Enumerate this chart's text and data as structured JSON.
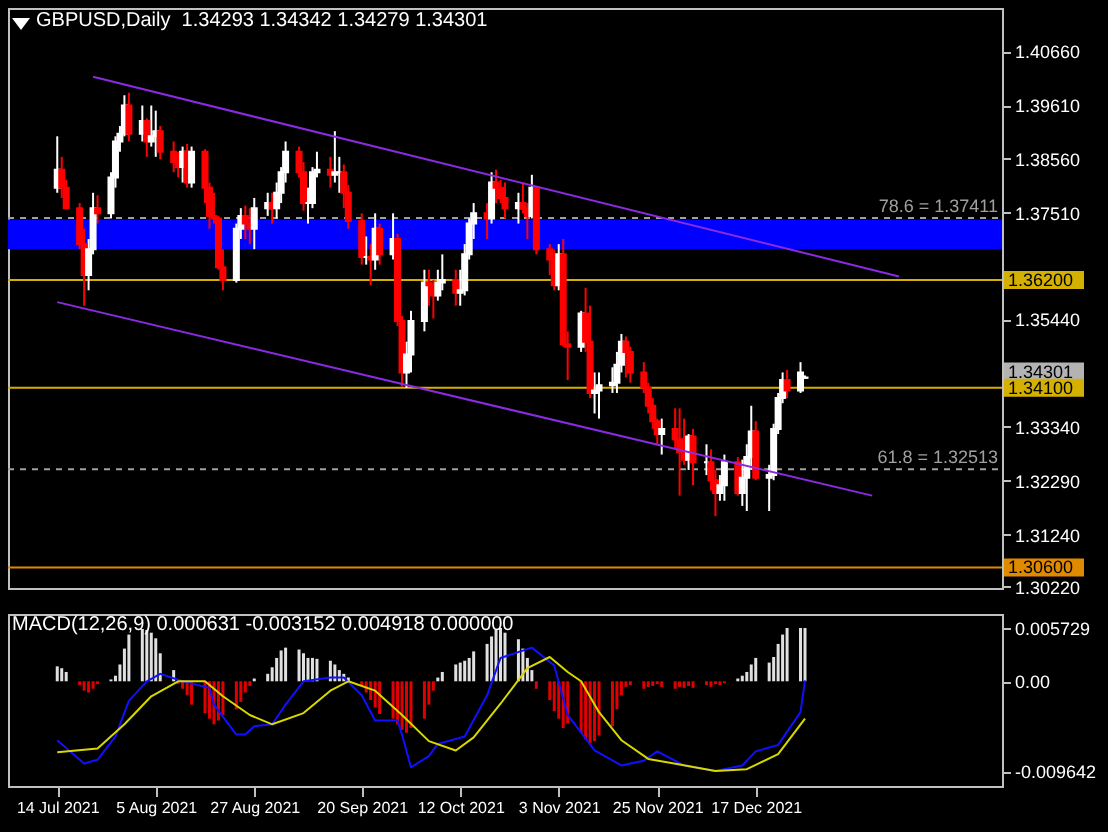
{
  "chart_data": [
    {
      "type": "candlestick",
      "title": "GBPUSD,Daily  1.34293 1.34342 1.34279 1.34301",
      "tick_labels": "y",
      "colors": [
        "#ffffff",
        "#ff0000",
        "#ff0000",
        "#ff0000",
        "#ff0000",
        "#ffffff",
        "#ffffff",
        "#ff0000",
        "#ffffff",
        "#ffffff",
        "#ffffff",
        "#ffffff",
        "#ff0000",
        "#ffffff",
        "#ff0000",
        "#ffffff",
        "#ffffff",
        "#ff0000",
        "#ff0000",
        "#ff0000",
        "#ffffff",
        "#ff0000",
        "#ffffff",
        "#ff0000",
        "#ff0000",
        "#ff0000",
        "#ff0000",
        "#ff0000",
        "#ffffff",
        "#ffffff",
        "#ff0000",
        "#ff0000",
        "#ffffff",
        "#ffffff",
        "#ff0000",
        "#ffffff",
        "#ffffff",
        "#ffffff",
        "#ff0000",
        "#ff0000",
        "#ffffff",
        "#ffffff",
        "#ffffff",
        "#ff0000",
        "#ffffff",
        "#ffffff",
        "#ff0000",
        "#ff0000",
        "#ff0000",
        "#ffffff",
        "#ff0000",
        "#ffffff",
        "#ff0000",
        "#ffffff",
        "#ff0000",
        "#ff0000",
        "#ffffff",
        "#ffffff",
        "#ffffff",
        "#ff0000",
        "#ff0000",
        "#ffffff",
        "#ffffff",
        "#ff0000",
        "#ffffff",
        "#ffffff",
        "#ffffff",
        "#ffffff",
        "#ff0000",
        "#ffffff",
        "#ff0000",
        "#ff0000",
        "#ff0000",
        "#ffffff",
        "#ff0000",
        "#ff0000",
        "#ffffff",
        "#ff0000",
        "#ff0000",
        "#ff0000",
        "#ffffff",
        "#ff0000",
        "#ff0000",
        "#ffffff",
        "#ff0000",
        "#ff0000",
        "#ffffff",
        "#ffffff",
        "#ffffff",
        "#ffffff",
        "#ffffff",
        "#ff0000",
        "#ff0000",
        "#ff0000",
        "#ff0000",
        "#ff0000",
        "#ff0000",
        "#ffffff",
        "#ff0000",
        "#ff0000",
        "#ff0000",
        "#ffffff",
        "#ff0000",
        "#ffffff",
        "#ff0000",
        "#ff0000",
        "#ffffff",
        "#ffffff",
        "#ff0000",
        "#ffffff",
        "#ffffff",
        "#ffffff",
        "#ff0000",
        "#ffffff",
        "#ffffff",
        "#ffffff",
        "#ffffff",
        "#ff0000",
        "#ffffff",
        "#ffffff"
      ],
      "x": [
        "2021-07-14",
        "2021-07-15",
        "2021-07-16",
        "2021-07-19",
        "2021-07-20",
        "2021-07-21",
        "2021-07-22",
        "2021-07-23",
        "2021-07-26",
        "2021-07-27",
        "2021-07-28",
        "2021-07-29",
        "2021-07-30",
        "2021-08-02",
        "2021-08-03",
        "2021-08-04",
        "2021-08-05",
        "2021-08-06",
        "2021-08-09",
        "2021-08-10",
        "2021-08-11",
        "2021-08-12",
        "2021-08-13",
        "2021-08-16",
        "2021-08-17",
        "2021-08-18",
        "2021-08-19",
        "2021-08-20",
        "2021-08-23",
        "2021-08-24",
        "2021-08-25",
        "2021-08-26",
        "2021-08-27",
        "2021-08-30",
        "2021-08-31",
        "2021-09-01",
        "2021-09-02",
        "2021-09-03",
        "2021-09-06",
        "2021-09-07",
        "2021-09-08",
        "2021-09-09",
        "2021-09-10",
        "2021-09-13",
        "2021-09-14",
        "2021-09-15",
        "2021-09-16",
        "2021-09-17",
        "2021-09-20",
        "2021-09-21",
        "2021-09-22",
        "2021-09-23",
        "2021-09-24",
        "2021-09-27",
        "2021-09-28",
        "2021-09-29",
        "2021-09-30",
        "2021-10-01",
        "2021-10-04",
        "2021-10-05",
        "2021-10-06",
        "2021-10-07",
        "2021-10-08",
        "2021-10-11",
        "2021-10-12",
        "2021-10-13",
        "2021-10-14",
        "2021-10-15",
        "2021-10-18",
        "2021-10-19",
        "2021-10-20",
        "2021-10-21",
        "2021-10-22",
        "2021-10-25",
        "2021-10-26",
        "2021-10-27",
        "2021-10-28",
        "2021-10-29",
        "2021-11-01",
        "2021-11-02",
        "2021-11-03",
        "2021-11-04",
        "2021-11-05",
        "2021-11-08",
        "2021-11-09",
        "2021-11-10",
        "2021-11-11",
        "2021-11-12",
        "2021-11-15",
        "2021-11-16",
        "2021-11-17",
        "2021-11-18",
        "2021-11-19",
        "2021-11-22",
        "2021-11-23",
        "2021-11-24",
        "2021-11-25",
        "2021-11-26",
        "2021-11-29",
        "2021-11-30",
        "2021-12-01",
        "2021-12-02",
        "2021-12-03",
        "2021-12-06",
        "2021-12-07",
        "2021-12-08",
        "2021-12-09",
        "2021-12-10",
        "2021-12-13",
        "2021-12-14",
        "2021-12-15",
        "2021-12-16",
        "2021-12-17",
        "2021-12-20",
        "2021-12-21",
        "2021-12-22",
        "2021-12-23",
        "2021-12-24",
        "2021-12-27",
        "2021-12-28"
      ],
      "ohlc": [
        [
          1.38,
          1.39,
          1.379,
          1.3835
        ],
        [
          1.3835,
          1.386,
          1.378,
          1.38
        ],
        [
          1.38,
          1.3815,
          1.376,
          1.376
        ],
        [
          1.376,
          1.377,
          1.368,
          1.369
        ],
        [
          1.369,
          1.372,
          1.357,
          1.363
        ],
        [
          1.363,
          1.37,
          1.36,
          1.368
        ],
        [
          1.368,
          1.379,
          1.367,
          1.376
        ],
        [
          1.376,
          1.3785,
          1.373,
          1.375
        ],
        [
          1.375,
          1.383,
          1.374,
          1.382
        ],
        [
          1.382,
          1.39,
          1.38,
          1.389
        ],
        [
          1.389,
          1.392,
          1.387,
          1.3905
        ],
        [
          1.3905,
          1.398,
          1.39,
          1.396
        ],
        [
          1.396,
          1.3985,
          1.389,
          1.3905
        ],
        [
          1.3905,
          1.396,
          1.389,
          1.393
        ],
        [
          1.393,
          1.3935,
          1.386,
          1.389
        ],
        [
          1.389,
          1.396,
          1.388,
          1.39
        ],
        [
          1.39,
          1.395,
          1.386,
          1.391
        ],
        [
          1.391,
          1.392,
          1.3855,
          1.387
        ],
        [
          1.387,
          1.389,
          1.383,
          1.385
        ],
        [
          1.385,
          1.387,
          1.382,
          1.384
        ],
        [
          1.384,
          1.388,
          1.381,
          1.387
        ],
        [
          1.387,
          1.3885,
          1.38,
          1.381
        ],
        [
          1.381,
          1.388,
          1.38,
          1.387
        ],
        [
          1.387,
          1.3875,
          1.377,
          1.38
        ],
        [
          1.38,
          1.381,
          1.372,
          1.3745
        ],
        [
          1.3745,
          1.379,
          1.373,
          1.374
        ],
        [
          1.374,
          1.3745,
          1.364,
          1.3645
        ],
        [
          1.3645,
          1.368,
          1.36,
          1.362
        ],
        [
          1.362,
          1.373,
          1.3615,
          1.372
        ],
        [
          1.372,
          1.376,
          1.37,
          1.3745
        ],
        [
          1.3745,
          1.3765,
          1.37,
          1.373
        ],
        [
          1.373,
          1.376,
          1.369,
          1.372
        ],
        [
          1.372,
          1.378,
          1.368,
          1.376
        ],
        [
          1.376,
          1.379,
          1.3745,
          1.377
        ],
        [
          1.377,
          1.379,
          1.373,
          1.376
        ],
        [
          1.376,
          1.381,
          1.374,
          1.379
        ],
        [
          1.379,
          1.384,
          1.377,
          1.383
        ],
        [
          1.383,
          1.389,
          1.381,
          1.387
        ],
        [
          1.387,
          1.388,
          1.382,
          1.383
        ],
        [
          1.383,
          1.385,
          1.3755,
          1.377
        ],
        [
          1.377,
          1.38,
          1.373,
          1.377
        ],
        [
          1.377,
          1.384,
          1.376,
          1.383
        ],
        [
          1.383,
          1.387,
          1.382,
          1.3835
        ],
        [
          1.3835,
          1.386,
          1.38,
          1.3825
        ],
        [
          1.3825,
          1.391,
          1.381,
          1.383
        ],
        [
          1.383,
          1.386,
          1.379,
          1.383
        ],
        [
          1.383,
          1.3845,
          1.376,
          1.379
        ],
        [
          1.379,
          1.3805,
          1.372,
          1.3735
        ],
        [
          1.3735,
          1.375,
          1.365,
          1.3665
        ],
        [
          1.3665,
          1.3705,
          1.365,
          1.3665
        ],
        [
          1.3665,
          1.369,
          1.361,
          1.366
        ],
        [
          1.366,
          1.375,
          1.364,
          1.372
        ],
        [
          1.372,
          1.373,
          1.365,
          1.367
        ],
        [
          1.367,
          1.375,
          1.366,
          1.37
        ],
        [
          1.37,
          1.371,
          1.353,
          1.354
        ],
        [
          1.354,
          1.355,
          1.3412,
          1.344
        ],
        [
          1.344,
          1.35,
          1.341,
          1.3475
        ],
        [
          1.3475,
          1.356,
          1.344,
          1.354
        ],
        [
          1.354,
          1.364,
          1.352,
          1.3615
        ],
        [
          1.3615,
          1.364,
          1.357,
          1.361
        ],
        [
          1.361,
          1.362,
          1.3545,
          1.359
        ],
        [
          1.359,
          1.364,
          1.358,
          1.3615
        ],
        [
          1.3615,
          1.367,
          1.36,
          1.362
        ],
        [
          1.362,
          1.364,
          1.357,
          1.3595
        ],
        [
          1.3595,
          1.364,
          1.357,
          1.36
        ],
        [
          1.36,
          1.369,
          1.359,
          1.367
        ],
        [
          1.367,
          1.374,
          1.366,
          1.373
        ],
        [
          1.373,
          1.377,
          1.37,
          1.375
        ],
        [
          1.375,
          1.377,
          1.37,
          1.374
        ],
        [
          1.374,
          1.383,
          1.373,
          1.381
        ],
        [
          1.381,
          1.3835,
          1.377,
          1.38
        ],
        [
          1.38,
          1.3815,
          1.377,
          1.378
        ],
        [
          1.378,
          1.381,
          1.374,
          1.376
        ],
        [
          1.376,
          1.379,
          1.373,
          1.377
        ],
        [
          1.377,
          1.381,
          1.375,
          1.376
        ],
        [
          1.376,
          1.377,
          1.37,
          1.3745
        ],
        [
          1.3745,
          1.3825,
          1.374,
          1.38
        ],
        [
          1.38,
          1.38,
          1.367,
          1.368
        ],
        [
          1.368,
          1.369,
          1.363,
          1.366
        ],
        [
          1.366,
          1.368,
          1.36,
          1.361
        ],
        [
          1.361,
          1.369,
          1.36,
          1.367
        ],
        [
          1.367,
          1.37,
          1.349,
          1.3495
        ],
        [
          1.3495,
          1.352,
          1.3425,
          1.349
        ],
        [
          1.349,
          1.356,
          1.348,
          1.3555
        ],
        [
          1.3555,
          1.3605,
          1.348,
          1.35
        ],
        [
          1.35,
          1.357,
          1.339,
          1.34
        ],
        [
          1.34,
          1.344,
          1.336,
          1.3405
        ],
        [
          1.3405,
          1.344,
          1.335,
          1.3415
        ],
        [
          1.3415,
          1.345,
          1.34,
          1.342
        ],
        [
          1.342,
          1.348,
          1.34,
          1.3455
        ],
        [
          1.3455,
          1.3515,
          1.344,
          1.35
        ],
        [
          1.35,
          1.351,
          1.343,
          1.348
        ],
        [
          1.348,
          1.349,
          1.342,
          1.344
        ],
        [
          1.344,
          1.346,
          1.34,
          1.341
        ],
        [
          1.341,
          1.342,
          1.336,
          1.3375
        ],
        [
          1.3375,
          1.339,
          1.333,
          1.3345
        ],
        [
          1.3345,
          1.335,
          1.33,
          1.332
        ],
        [
          1.332,
          1.335,
          1.328,
          1.333
        ],
        [
          1.333,
          1.337,
          1.329,
          1.331
        ],
        [
          1.331,
          1.337,
          1.32,
          1.3285
        ],
        [
          1.3285,
          1.335,
          1.326,
          1.327
        ],
        [
          1.327,
          1.332,
          1.325,
          1.3315
        ],
        [
          1.3315,
          1.333,
          1.322,
          1.3265
        ],
        [
          1.3265,
          1.33,
          1.324,
          1.3265
        ],
        [
          1.3265,
          1.329,
          1.321,
          1.323
        ],
        [
          1.323,
          1.325,
          1.316,
          1.3205
        ],
        [
          1.3205,
          1.324,
          1.319,
          1.322
        ],
        [
          1.322,
          1.328,
          1.319,
          1.3265
        ],
        [
          1.3265,
          1.3275,
          1.32,
          1.3205
        ],
        [
          1.3205,
          1.327,
          1.318,
          1.3235
        ],
        [
          1.3235,
          1.33,
          1.317,
          1.3275
        ],
        [
          1.3275,
          1.3375,
          1.325,
          1.3325
        ],
        [
          1.3325,
          1.3345,
          1.323,
          1.3235
        ],
        [
          1.3235,
          1.326,
          1.317,
          1.324
        ],
        [
          1.324,
          1.334,
          1.323,
          1.333
        ],
        [
          1.333,
          1.34,
          1.332,
          1.339
        ],
        [
          1.339,
          1.344,
          1.338,
          1.3425
        ],
        [
          1.3425,
          1.3445,
          1.339,
          1.3405
        ],
        [
          1.3405,
          1.346,
          1.34,
          1.344
        ],
        [
          1.34293,
          1.34342,
          1.34279,
          1.34301
        ]
      ],
      "series": [
        {
          "type": "line",
          "color": "#8a2be2",
          "x": [
            "2021-07-22",
            "2022-01-18"
          ],
          "values": [
            1.4016,
            1.3627
          ]
        },
        {
          "type": "line",
          "color": "#8a2be2",
          "x": [
            "2021-07-14",
            "2022-01-12"
          ],
          "values": [
            1.3577,
            1.32
          ]
        }
      ],
      "xlim": [
        "2021-07-03",
        "2022-02-10"
      ],
      "ylim": [
        1.302,
        1.415
      ],
      "yticks": [
        {
          "value": 1.4066,
          "label": "1.40660"
        },
        {
          "value": 1.3961,
          "label": "1.39610"
        },
        {
          "value": 1.3856,
          "label": "1.38560"
        },
        {
          "value": 1.3751,
          "label": "1.37510"
        },
        {
          "value": 1.3544,
          "label": "1.35440"
        },
        {
          "value": 1.3334,
          "label": "1.33340"
        },
        {
          "value": 1.3229,
          "label": "1.32290"
        },
        {
          "value": 1.3124,
          "label": "1.31240"
        },
        {
          "value": 1.3022,
          "label": "1.30220"
        }
      ],
      "bands": [
        {
          "axis": "y",
          "from": 1.368,
          "to": 1.3738,
          "color": "#0000ff"
        }
      ],
      "ref_lines": [
        {
          "axis": "y",
          "value": 1.37411,
          "label": "78.6 = 1.37411",
          "color": "#a0a0a0",
          "line_style": "dashed"
        },
        {
          "axis": "y",
          "value": 1.362,
          "label": "1.36200",
          "color": "#d4b000",
          "line_style": "solid"
        },
        {
          "axis": "y",
          "value": 1.341,
          "label": "1.34100",
          "color": "#d4b000",
          "line_style": "solid"
        },
        {
          "axis": "y",
          "value": 1.32513,
          "label": "61.8 = 1.32513",
          "color": "#a0a0a0",
          "line_style": "dashed"
        },
        {
          "axis": "y",
          "value": 1.306,
          "label": "1.30600",
          "color": "#e08a00",
          "line_style": "solid"
        }
      ],
      "annotations": [
        "1.34301"
      ],
      "grid": false
    },
    {
      "type": "bar",
      "title": "MACD(12,26,9) 0.000631 -0.003152 0.004918 0.000000",
      "x": [
        "2021-07-14",
        "2021-07-15",
        "2021-07-16",
        "2021-07-19",
        "2021-07-20",
        "2021-07-21",
        "2021-07-22",
        "2021-07-23",
        "2021-07-26",
        "2021-07-27",
        "2021-07-28",
        "2021-07-29",
        "2021-07-30",
        "2021-08-02",
        "2021-08-03",
        "2021-08-04",
        "2021-08-05",
        "2021-08-06",
        "2021-08-09",
        "2021-08-10",
        "2021-08-11",
        "2021-08-12",
        "2021-08-13",
        "2021-08-16",
        "2021-08-17",
        "2021-08-18",
        "2021-08-19",
        "2021-08-20",
        "2021-08-23",
        "2021-08-24",
        "2021-08-25",
        "2021-08-26",
        "2021-08-27",
        "2021-08-30",
        "2021-08-31",
        "2021-09-01",
        "2021-09-02",
        "2021-09-03",
        "2021-09-06",
        "2021-09-07",
        "2021-09-08",
        "2021-09-09",
        "2021-09-10",
        "2021-09-13",
        "2021-09-14",
        "2021-09-15",
        "2021-09-16",
        "2021-09-17",
        "2021-09-20",
        "2021-09-21",
        "2021-09-22",
        "2021-09-23",
        "2021-09-24",
        "2021-09-27",
        "2021-09-28",
        "2021-09-29",
        "2021-09-30",
        "2021-10-01",
        "2021-10-04",
        "2021-10-05",
        "2021-10-06",
        "2021-10-07",
        "2021-10-08",
        "2021-10-11",
        "2021-10-12",
        "2021-10-13",
        "2021-10-14",
        "2021-10-15",
        "2021-10-18",
        "2021-10-19",
        "2021-10-20",
        "2021-10-21",
        "2021-10-22",
        "2021-10-25",
        "2021-10-26",
        "2021-10-27",
        "2021-10-28",
        "2021-10-29",
        "2021-11-01",
        "2021-11-02",
        "2021-11-03",
        "2021-11-04",
        "2021-11-05",
        "2021-11-08",
        "2021-11-09",
        "2021-11-10",
        "2021-11-11",
        "2021-11-12",
        "2021-11-15",
        "2021-11-16",
        "2021-11-17",
        "2021-11-18",
        "2021-11-19",
        "2021-11-22",
        "2021-11-23",
        "2021-11-24",
        "2021-11-25",
        "2021-11-26",
        "2021-11-29",
        "2021-11-30",
        "2021-12-01",
        "2021-12-02",
        "2021-12-03",
        "2021-12-06",
        "2021-12-07",
        "2021-12-08",
        "2021-12-09",
        "2021-12-10",
        "2021-12-13",
        "2021-12-14",
        "2021-12-15",
        "2021-12-16",
        "2021-12-17",
        "2021-12-20",
        "2021-12-21",
        "2021-12-22",
        "2021-12-23",
        "2021-12-24",
        "2021-12-27",
        "2021-12-28"
      ],
      "series": [
        {
          "values": [
            0.0016,
            0.0014,
            0.001,
            -0.0004,
            -0.001,
            -0.0012,
            -0.0008,
            -0.0003,
            0.0002,
            0.0006,
            0.0018,
            0.0035,
            0.005,
            0.0056,
            0.0055,
            0.0052,
            0.0046,
            0.003,
            0.0012,
            -0.0003,
            -0.0008,
            -0.0015,
            -0.0025,
            -0.0034,
            -0.004,
            -0.0046,
            -0.0042,
            -0.0036,
            -0.003,
            -0.0022,
            -0.0012,
            -0.0005,
            0.0003,
            0.0008,
            0.0015,
            0.0025,
            0.0033,
            0.0036,
            0.0034,
            0.003,
            0.0025,
            0.0025,
            0.0024,
            0.0022,
            0.0018,
            0.0012,
            0.0008,
            0.0004,
            -0.0005,
            -0.0012,
            -0.002,
            -0.0028,
            -0.0035,
            -0.004,
            -0.0046,
            -0.0052,
            -0.0055,
            -0.005,
            -0.004,
            -0.0025,
            -0.001,
            0.0004,
            0.001,
            0.0018,
            0.002,
            0.0022,
            0.0025,
            0.0032,
            0.004,
            0.0048,
            0.0055,
            0.0057,
            0.0052,
            0.0045,
            0.0035,
            0.0025,
            0.0012,
            -0.0008,
            -0.002,
            -0.0032,
            -0.004,
            -0.005,
            -0.0045,
            -0.0055,
            -0.0062,
            -0.0066,
            -0.0064,
            -0.0058,
            -0.0048,
            -0.003,
            -0.0015,
            -0.0006,
            -0.0004,
            -0.0008,
            -0.0006,
            -0.0005,
            -0.0003,
            -0.0006,
            -0.0008,
            -0.0006,
            -0.0007,
            -0.0005,
            -0.0007,
            -0.0004,
            -0.0006,
            -0.0003,
            -0.0004,
            -0.0002,
            0.0003,
            0.0006,
            0.001,
            0.0018,
            0.0025,
            0.002,
            0.0026,
            0.004,
            0.005,
            0.0057,
            0.0057,
            0.0057
          ],
          "colors": [
            "#e0e0e0",
            "#e0e0e0",
            "#e0e0e0",
            "#e00000",
            "#e00000",
            "#e00000",
            "#e00000",
            "#e00000",
            "#e0e0e0",
            "#e0e0e0",
            "#e0e0e0",
            "#e0e0e0",
            "#e0e0e0",
            "#e0e0e0",
            "#e0e0e0",
            "#e0e0e0",
            "#e0e0e0",
            "#e0e0e0",
            "#e0e0e0",
            "#e00000",
            "#e00000",
            "#e00000",
            "#e00000",
            "#e00000",
            "#e00000",
            "#e00000",
            "#e00000",
            "#e00000",
            "#e00000",
            "#e00000",
            "#e00000",
            "#e00000",
            "#e0e0e0",
            "#e0e0e0",
            "#e0e0e0",
            "#e0e0e0",
            "#e0e0e0",
            "#e0e0e0",
            "#e0e0e0",
            "#e0e0e0",
            "#e0e0e0",
            "#e0e0e0",
            "#e0e0e0",
            "#e0e0e0",
            "#e0e0e0",
            "#e0e0e0",
            "#e0e0e0",
            "#e0e0e0",
            "#e00000",
            "#e00000",
            "#e00000",
            "#e00000",
            "#e00000",
            "#e00000",
            "#e00000",
            "#e00000",
            "#e00000",
            "#e00000",
            "#e00000",
            "#e00000",
            "#e00000",
            "#e0e0e0",
            "#e0e0e0",
            "#e0e0e0",
            "#e0e0e0",
            "#e0e0e0",
            "#e0e0e0",
            "#e0e0e0",
            "#e0e0e0",
            "#e0e0e0",
            "#e0e0e0",
            "#e0e0e0",
            "#e0e0e0",
            "#e0e0e0",
            "#e0e0e0",
            "#e0e0e0",
            "#e0e0e0",
            "#e00000",
            "#e00000",
            "#e00000",
            "#e00000",
            "#e00000",
            "#e00000",
            "#e00000",
            "#e00000",
            "#e00000",
            "#e00000",
            "#e00000",
            "#e00000",
            "#e00000",
            "#e00000",
            "#e00000",
            "#e00000",
            "#e00000",
            "#e00000",
            "#e00000",
            "#e00000",
            "#e00000",
            "#e00000",
            "#e00000",
            "#e00000",
            "#e00000",
            "#e00000",
            "#e00000",
            "#e00000",
            "#e00000",
            "#e00000",
            "#e00000",
            "#e0e0e0",
            "#e0e0e0",
            "#e0e0e0",
            "#e0e0e0",
            "#e0e0e0",
            "#e0e0e0",
            "#e0e0e0",
            "#e0e0e0",
            "#e0e0e0",
            "#e0e0e0",
            "#e0e0e0",
            "#e0e0e0"
          ]
        },
        {
          "type": "line",
          "color": "#1010ff",
          "x": [
            "2021-07-14",
            "2021-07-20",
            "2021-07-23",
            "2021-07-27",
            "2021-07-30",
            "2021-08-03",
            "2021-08-06",
            "2021-08-11",
            "2021-08-17",
            "2021-08-18",
            "2021-08-23",
            "2021-08-25",
            "2021-08-27",
            "2021-08-31",
            "2021-09-03",
            "2021-09-07",
            "2021-09-13",
            "2021-09-16",
            "2021-09-20",
            "2021-09-23",
            "2021-09-28",
            "2021-09-29",
            "2021-10-01",
            "2021-10-05",
            "2021-10-07",
            "2021-10-13",
            "2021-10-18",
            "2021-10-21",
            "2021-10-28",
            "2021-11-02",
            "2021-11-05",
            "2021-11-11",
            "2021-11-17",
            "2021-11-22",
            "2021-11-25",
            "2021-12-01",
            "2021-12-08",
            "2021-12-14",
            "2021-12-17",
            "2021-12-22",
            "2021-12-27",
            "2021-12-28"
          ],
          "values": [
            -0.0063,
            -0.0088,
            -0.0084,
            -0.0059,
            -0.0021,
            0.0,
            0.0008,
            0.0,
            -0.0007,
            -0.0025,
            -0.0057,
            -0.0057,
            -0.0048,
            -0.0046,
            -0.0025,
            0.0,
            0.0004,
            0.0004,
            -0.0015,
            -0.0042,
            -0.0042,
            -0.0057,
            -0.0092,
            -0.008,
            -0.0067,
            -0.0059,
            -0.0015,
            0.0025,
            0.0036,
            0.0017,
            -0.0036,
            -0.0074,
            -0.009,
            -0.0085,
            -0.0075,
            -0.009,
            -0.0096,
            -0.009,
            -0.0075,
            -0.0068,
            -0.0033,
            0.0001
          ]
        },
        {
          "type": "line",
          "color": "#d8d800",
          "x": [
            "2021-07-14",
            "2021-07-23",
            "2021-07-29",
            "2021-08-04",
            "2021-08-10",
            "2021-08-16",
            "2021-08-20",
            "2021-08-26",
            "2021-08-31",
            "2021-09-07",
            "2021-09-13",
            "2021-09-17",
            "2021-09-23",
            "2021-09-29",
            "2021-10-05",
            "2021-10-11",
            "2021-10-15",
            "2021-10-21",
            "2021-10-27",
            "2021-11-01",
            "2021-11-05",
            "2021-11-08",
            "2021-11-12",
            "2021-11-17",
            "2021-11-23",
            "2021-11-30",
            "2021-12-08",
            "2021-12-15",
            "2021-12-22",
            "2021-12-28"
          ],
          "values": [
            -0.0076,
            -0.0072,
            -0.0046,
            -0.0016,
            0.0,
            0.0,
            -0.0016,
            -0.0036,
            -0.0046,
            -0.0034,
            -0.001,
            0.0,
            -0.001,
            -0.0036,
            -0.0064,
            -0.0074,
            -0.006,
            -0.0024,
            0.0014,
            0.0026,
            0.001,
            0.0,
            -0.0033,
            -0.0063,
            -0.0083,
            -0.0089,
            -0.0096,
            -0.0094,
            -0.0078,
            -0.004
          ]
        }
      ],
      "xlim": [
        "2021-07-03",
        "2022-02-10"
      ],
      "xticks": [
        {
          "value": "2021-07-14",
          "label": "14 Jul 2021"
        },
        {
          "value": "2021-08-05",
          "label": "5 Aug 2021"
        },
        {
          "value": "2021-08-27",
          "label": "27 Aug 2021"
        },
        {
          "value": "2021-09-20",
          "label": "20 Sep 2021"
        },
        {
          "value": "2021-10-12",
          "label": "12 Oct 2021"
        },
        {
          "value": "2021-11-03",
          "label": "3 Nov 2021"
        },
        {
          "value": "2021-11-25",
          "label": "25 Nov 2021"
        },
        {
          "value": "2021-12-17",
          "label": "17 Dec 2021"
        }
      ],
      "ylim": [
        -0.0112,
        0.0072
      ],
      "yticks": [
        0.005729,
        {
          "value": 0,
          "label": "0.00"
        },
        -0.009642
      ],
      "grid": false
    }
  ]
}
